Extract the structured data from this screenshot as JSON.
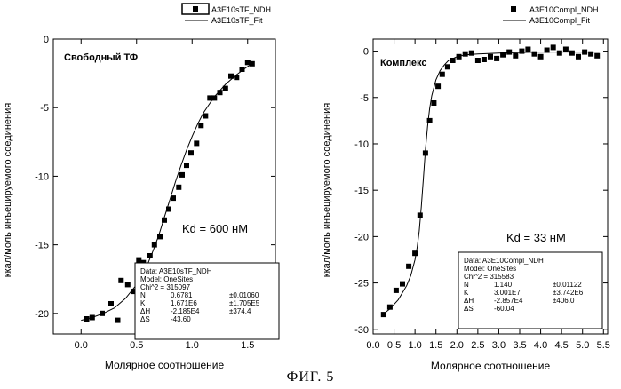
{
  "figure_caption": "ФИГ. 5",
  "chart_data": [
    {
      "type": "scatter",
      "panel_label": "Свободный ТФ",
      "kd_label": "Kd = 600 нМ",
      "xlabel": "Молярное соотношение",
      "ylabel": "ккал/моль инъецируемого соединения",
      "xlim": [
        -0.25,
        1.75
      ],
      "ylim": [
        -21.5,
        0
      ],
      "xticks": [
        0.0,
        0.5,
        1.0,
        1.5
      ],
      "xtick_labels": [
        "0.0",
        "0.5",
        "1.0",
        "1.5"
      ],
      "yticks": [
        0,
        -5,
        -10,
        -15,
        -20
      ],
      "ytick_labels": [
        "0",
        "-5",
        "-10",
        "-15",
        "-20"
      ],
      "legend": {
        "placement": "top-center-outside",
        "series_label": "A3E10sTF_NDH",
        "fit_label": "A3E10sTF_Fit"
      },
      "series": [
        {
          "name": "A3E10sTF_NDH",
          "x": [
            0.05,
            0.1,
            0.19,
            0.27,
            0.33,
            0.36,
            0.42,
            0.47,
            0.52,
            0.56,
            0.62,
            0.66,
            0.71,
            0.75,
            0.79,
            0.83,
            0.88,
            0.91,
            0.95,
            0.99,
            1.04,
            1.08,
            1.12,
            1.16,
            1.2,
            1.25,
            1.3,
            1.35,
            1.4,
            1.45,
            1.5,
            1.54
          ],
          "y": [
            -20.4,
            -20.3,
            -20.0,
            -19.3,
            -20.5,
            -17.6,
            -17.9,
            -18.4,
            -16.1,
            -16.3,
            -15.8,
            -15.0,
            -14.4,
            -13.2,
            -12.4,
            -11.6,
            -10.8,
            -9.9,
            -9.2,
            -8.3,
            -7.6,
            -6.3,
            -5.6,
            -4.3,
            -4.3,
            -3.9,
            -3.6,
            -2.7,
            -2.8,
            -2.2,
            -1.7,
            -1.8
          ]
        }
      ],
      "fit": {
        "name": "A3E10sTF_Fit",
        "x": [
          0.0,
          0.1,
          0.2,
          0.3,
          0.4,
          0.5,
          0.6,
          0.65,
          0.7,
          0.75,
          0.8,
          0.85,
          0.9,
          0.95,
          1.0,
          1.05,
          1.1,
          1.15,
          1.2,
          1.3,
          1.4,
          1.5,
          1.56
        ],
        "y": [
          -20.5,
          -20.3,
          -20.0,
          -19.6,
          -18.9,
          -17.9,
          -16.4,
          -15.4,
          -14.3,
          -13.0,
          -11.7,
          -10.4,
          -9.2,
          -8.1,
          -7.1,
          -6.2,
          -5.4,
          -4.8,
          -4.2,
          -3.3,
          -2.6,
          -2.0,
          -1.7
        ]
      },
      "params_box": {
        "lines": [
          "Data: A3E10sTF_NDH",
          "Model: OneSites",
          "Chi^2 = 315097"
        ],
        "rows": [
          [
            "N",
            "0.6781",
            "±0.01060"
          ],
          [
            "K",
            "1.671E6",
            "±1.705E5"
          ],
          [
            "ΔH",
            "-2.185E4",
            "±374.4"
          ],
          [
            "ΔS",
            "-43.60",
            ""
          ]
        ]
      },
      "grid": false
    },
    {
      "type": "scatter",
      "panel_label": "Комплекс",
      "kd_label": "Kd = 33 нМ",
      "xlabel": "Молярное соотношение",
      "ylabel": "ккал/моль инъецируемого соединения",
      "xlim": [
        0,
        5.6
      ],
      "ylim": [
        -30.5,
        1.3
      ],
      "xticks": [
        0.0,
        0.5,
        1.0,
        1.5,
        2.0,
        2.5,
        3.0,
        3.5,
        4.0,
        4.5,
        5.0,
        5.5
      ],
      "xtick_labels": [
        "0.0",
        "0.5",
        "1.0",
        "1.5",
        "2.0",
        "2.5",
        "3.0",
        "3.5",
        "4.0",
        "4.5",
        "5.0",
        "5.5"
      ],
      "yticks": [
        0,
        -5,
        -10,
        -15,
        -20,
        -25,
        -30
      ],
      "ytick_labels": [
        "0",
        "-5",
        "-10",
        "-15",
        "-20",
        "-25",
        "-30"
      ],
      "legend": {
        "placement": "top-right-outside",
        "series_label": "A3E10Compl_NDH",
        "fit_label": "A3E10Compl_Fit"
      },
      "series": [
        {
          "name": "A3E10Compl_NDH",
          "x": [
            0.25,
            0.4,
            0.55,
            0.7,
            0.85,
            1.0,
            1.12,
            1.25,
            1.35,
            1.45,
            1.55,
            1.65,
            1.78,
            1.9,
            2.05,
            2.2,
            2.35,
            2.5,
            2.65,
            2.8,
            2.95,
            3.1,
            3.25,
            3.4,
            3.55,
            3.7,
            3.85,
            4.0,
            4.15,
            4.3,
            4.45,
            4.6,
            4.75,
            4.9,
            5.05,
            5.2,
            5.35
          ],
          "y": [
            -28.4,
            -27.6,
            -25.8,
            -25.1,
            -23.2,
            -21.8,
            -17.7,
            -11.0,
            -7.5,
            -5.6,
            -3.8,
            -2.5,
            -1.7,
            -1.0,
            -0.6,
            -0.3,
            -0.2,
            -1.0,
            -0.9,
            -0.6,
            -0.8,
            -0.4,
            -0.1,
            -0.5,
            0.0,
            0.2,
            -0.3,
            -0.6,
            0.1,
            0.4,
            -0.2,
            0.2,
            -0.2,
            -0.6,
            -0.1,
            -0.3,
            -0.5
          ]
        }
      ],
      "fit": {
        "name": "A3E10Compl_Fit",
        "x": [
          0.2,
          0.4,
          0.6,
          0.8,
          0.9,
          1.0,
          1.05,
          1.1,
          1.15,
          1.2,
          1.25,
          1.3,
          1.35,
          1.4,
          1.5,
          1.6,
          1.7,
          1.8,
          2.0,
          2.2,
          2.5,
          3.0,
          3.5,
          4.0,
          4.5,
          5.0,
          5.4
        ],
        "y": [
          -28.5,
          -27.8,
          -26.8,
          -25.3,
          -24.2,
          -22.5,
          -21.2,
          -19.4,
          -16.8,
          -13.7,
          -10.6,
          -8.1,
          -6.2,
          -4.8,
          -3.1,
          -2.1,
          -1.5,
          -1.0,
          -0.6,
          -0.4,
          -0.3,
          -0.2,
          -0.15,
          -0.1,
          -0.1,
          -0.1,
          -0.1
        ]
      },
      "params_box": {
        "lines": [
          "Data: A3E10Compl_NDH",
          "Model: OneSites",
          "Chi^2 = 315583"
        ],
        "rows": [
          [
            "N",
            "1.140",
            "±0.01122"
          ],
          [
            "K",
            "3.001E7",
            "±3.742E6"
          ],
          [
            "ΔH",
            "-2.857E4",
            "±406.0"
          ],
          [
            "ΔS",
            "-60.04",
            ""
          ]
        ]
      },
      "grid": false
    }
  ]
}
